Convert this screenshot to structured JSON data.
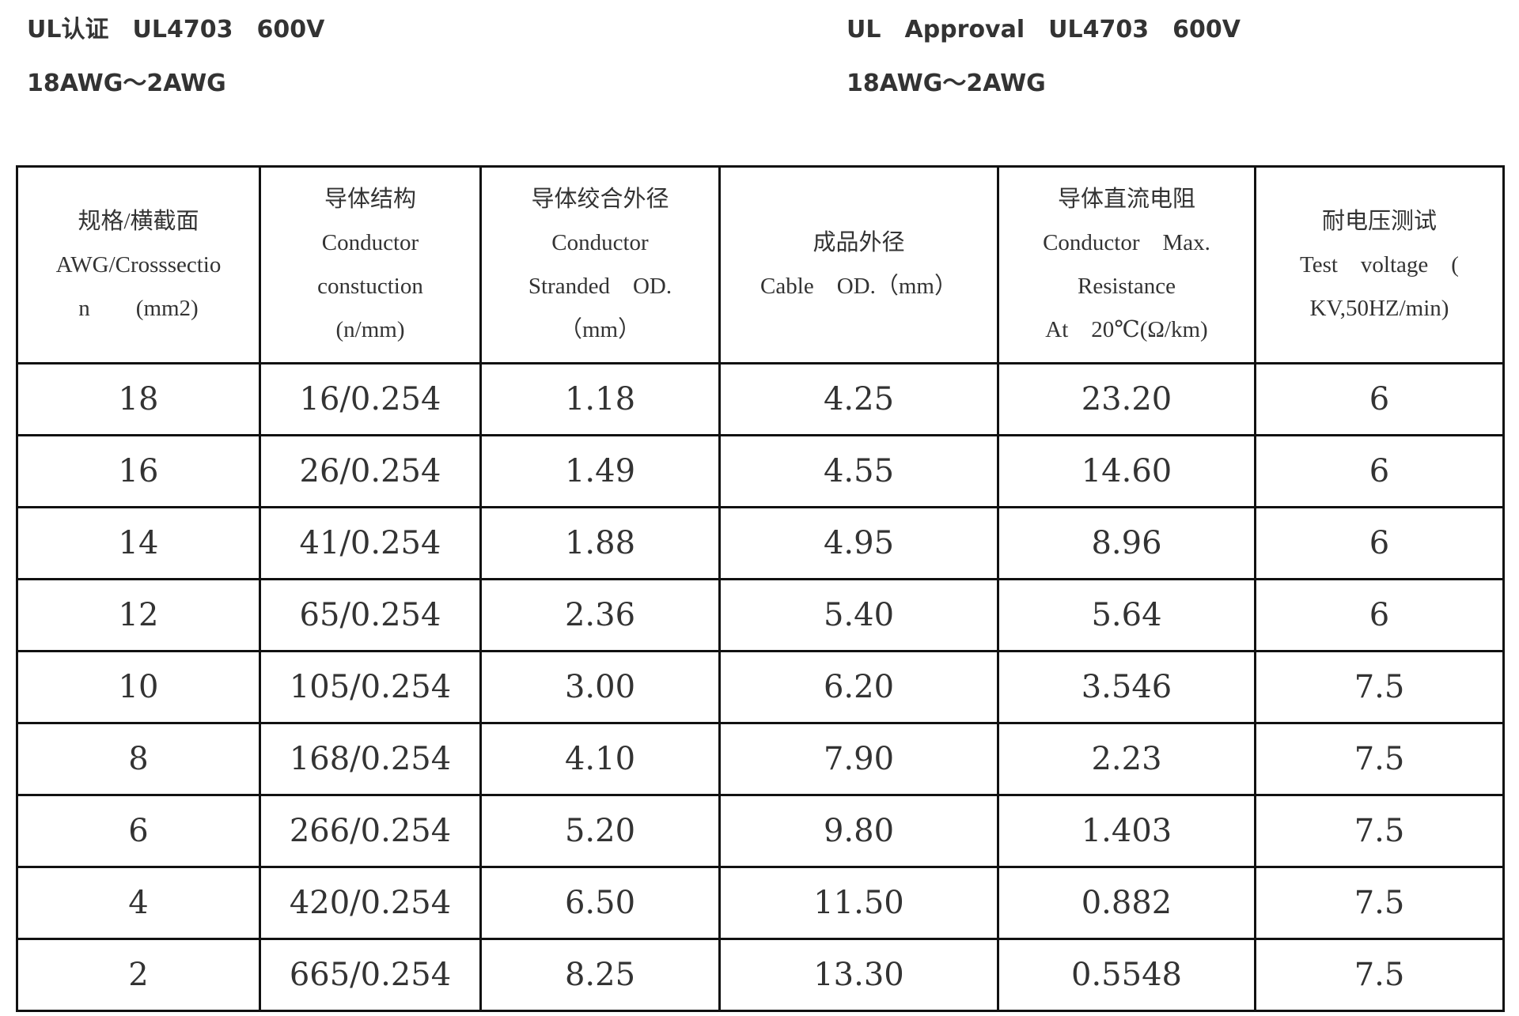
{
  "header": {
    "left": [
      "UL认证　UL4703　600V",
      "18AWG～2AWG"
    ],
    "right": [
      "UL　Approval　UL4703　600V",
      "18AWG～2AWG"
    ]
  },
  "table": {
    "columns": [
      [
        "规格/横截面",
        "AWG/Crosssectio",
        "n　　(mm2)"
      ],
      [
        "导体结构",
        "Conductor",
        "constuction",
        "(n/mm)"
      ],
      [
        "导体绞合外径",
        "Conductor",
        "Stranded　OD.",
        "（mm）"
      ],
      [
        "成品外径",
        "Cable　OD.（mm）"
      ],
      [
        "导体直流电阻",
        "Conductor　Max.",
        "Resistance",
        "At　20℃(Ω/km)"
      ],
      [
        "耐电压测试",
        "Test　voltage　(",
        "KV,50HZ/min)"
      ]
    ],
    "rows": [
      [
        "18",
        "16/0.254",
        "1.18",
        "4.25",
        "23.20",
        "6"
      ],
      [
        "16",
        "26/0.254",
        "1.49",
        "4.55",
        "14.60",
        "6"
      ],
      [
        "14",
        "41/0.254",
        "1.88",
        "4.95",
        "8.96",
        "6"
      ],
      [
        "12",
        "65/0.254",
        "2.36",
        "5.40",
        "5.64",
        "6"
      ],
      [
        "10",
        "105/0.254",
        "3.00",
        "6.20",
        "3.546",
        "7.5"
      ],
      [
        "8",
        "168/0.254",
        "4.10",
        "7.90",
        "2.23",
        "7.5"
      ],
      [
        "6",
        "266/0.254",
        "5.20",
        "9.80",
        "1.403",
        "7.5"
      ],
      [
        "4",
        "420/0.254",
        "6.50",
        "11.50",
        "0.882",
        "7.5"
      ],
      [
        "2",
        "665/0.254",
        "8.25",
        "13.30",
        "0.5548",
        "7.5"
      ]
    ]
  }
}
